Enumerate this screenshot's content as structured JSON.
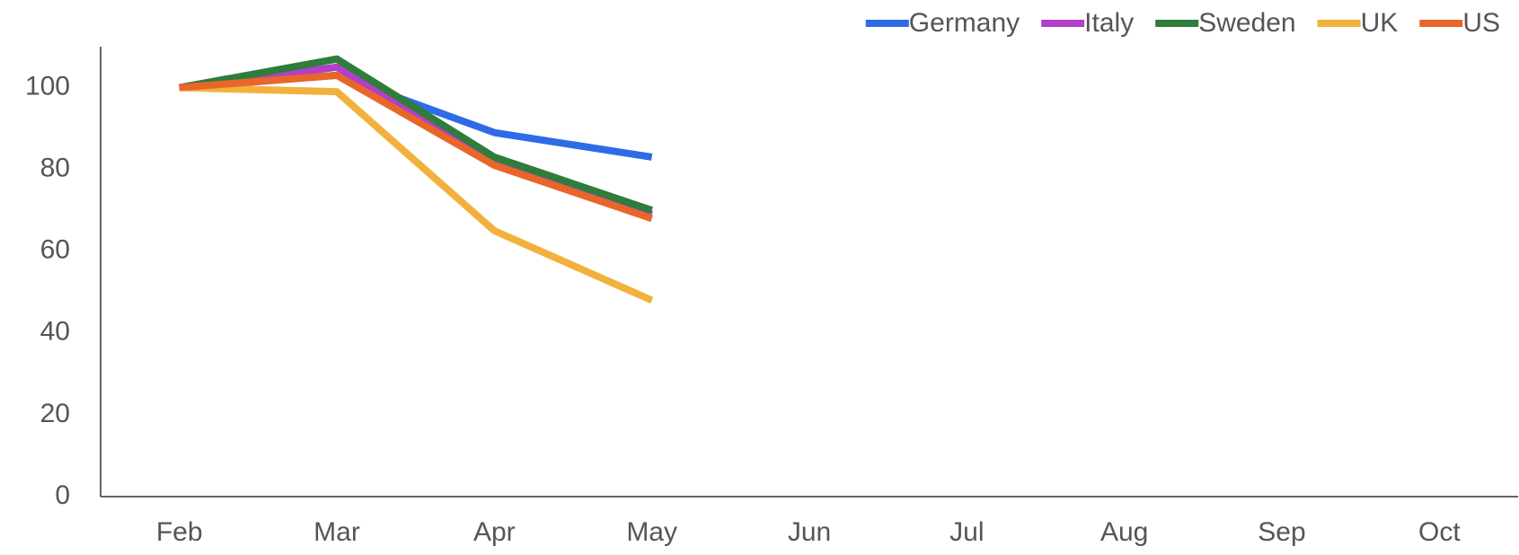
{
  "chart_data": {
    "type": "line",
    "categories": [
      "Feb",
      "Mar",
      "Apr",
      "May",
      "Jun",
      "Jul",
      "Aug",
      "Sep",
      "Oct"
    ],
    "series": [
      {
        "name": "Germany",
        "color": "#2f6be6",
        "values": [
          100,
          103,
          89,
          83,
          null,
          null,
          null,
          null,
          null
        ]
      },
      {
        "name": "Italy",
        "color": "#b040c8",
        "values": [
          100,
          105,
          82,
          69,
          null,
          null,
          null,
          null,
          null
        ]
      },
      {
        "name": "Sweden",
        "color": "#2e7d3a",
        "values": [
          100,
          107,
          83,
          70,
          null,
          null,
          null,
          null,
          null
        ]
      },
      {
        "name": "UK",
        "color": "#f2b13c",
        "values": [
          100,
          99,
          65,
          48,
          null,
          null,
          null,
          null,
          null
        ]
      },
      {
        "name": "US",
        "color": "#e8662a",
        "values": [
          100,
          103,
          81,
          68,
          null,
          null,
          null,
          null,
          null
        ]
      }
    ],
    "ylim": [
      0,
      110
    ],
    "yticks": [
      0,
      20,
      40,
      60,
      80,
      100
    ],
    "grid": false,
    "legend": "top-right"
  }
}
